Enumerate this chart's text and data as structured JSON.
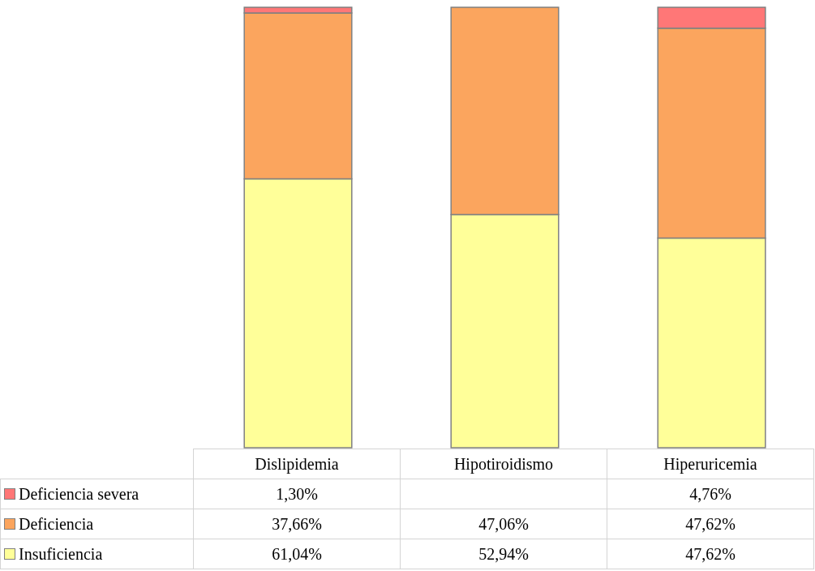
{
  "chart_data": {
    "type": "bar",
    "stacked": true,
    "categories": [
      "Dislipidemia",
      "Hipotiroidismo",
      "Hiperuricemia"
    ],
    "ylim": [
      0,
      100
    ],
    "legend": "bottom left",
    "series": [
      {
        "name": "Insuficiencia",
        "color": "#ffff99",
        "values": [
          61.04,
          52.94,
          47.62
        ],
        "value_labels": [
          "61,04%",
          "52,94%",
          "47,62%"
        ]
      },
      {
        "name": "Deficiencia",
        "color": "#fba55e",
        "values": [
          37.66,
          47.06,
          47.62
        ],
        "value_labels": [
          "37,66%",
          "47,06%",
          "47,62%"
        ]
      },
      {
        "name": "Deficiencia severa",
        "color": "#ff7777",
        "values": [
          1.3,
          null,
          4.76
        ],
        "value_labels": [
          "1,30%",
          null,
          "4,76%"
        ]
      }
    ]
  }
}
